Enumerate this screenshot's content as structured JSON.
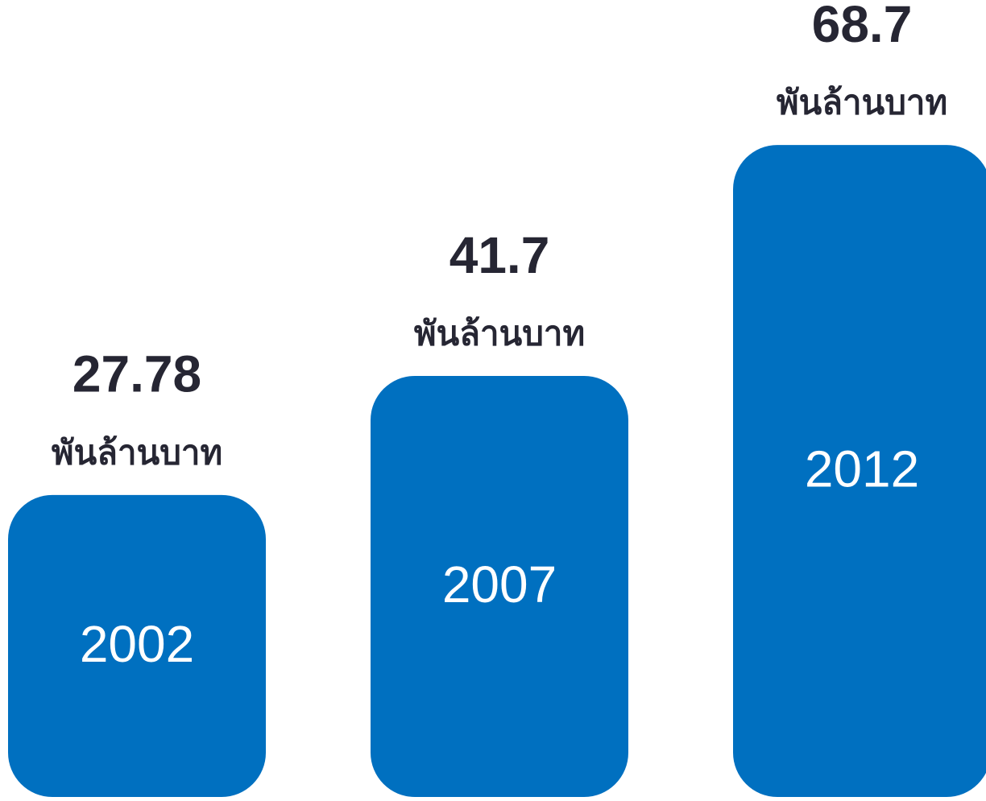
{
  "chart_data": {
    "type": "bar",
    "categories": [
      "2002",
      "2007",
      "2012"
    ],
    "values": [
      27.78,
      41.7,
      68.7
    ],
    "unit": "พันล้านบาท",
    "color": "#0070c0",
    "ylim": [
      -8,
      72
    ]
  }
}
